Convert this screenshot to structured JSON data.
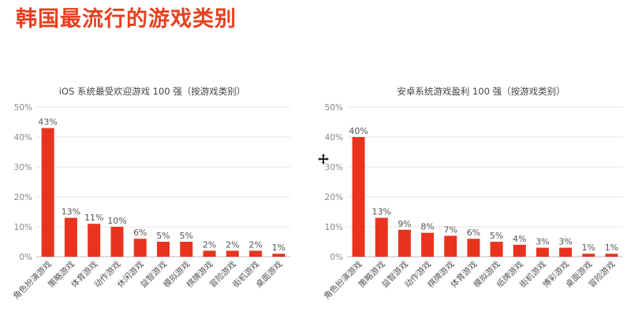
{
  "page": {
    "title": "韩国最流行的游戏类别"
  },
  "colors": {
    "bar": "#e8341f",
    "grid": "#e6e6e6",
    "axis_text": "#888888",
    "label_text": "#555555"
  },
  "cursor": {
    "icon": "move-cursor-icon"
  },
  "chart_data": [
    {
      "type": "bar",
      "title": "iOS 系统最受欢迎游戏 100 强（按游戏类别）",
      "xlabel": "",
      "ylabel": "",
      "ylim": [
        0,
        50
      ],
      "yticks": [
        "0%",
        "10%",
        "20%",
        "30%",
        "40%",
        "50%"
      ],
      "categories": [
        "角色扮演游戏",
        "策略游戏",
        "体育游戏",
        "动作游戏",
        "休闲游戏",
        "益智游戏",
        "模拟游戏",
        "棋牌游戏",
        "冒险游戏",
        "街机游戏",
        "桌面游戏"
      ],
      "values": [
        43,
        13,
        11,
        10,
        6,
        5,
        5,
        2,
        2,
        2,
        1
      ],
      "value_labels": [
        "43%",
        "13%",
        "11%",
        "10%",
        "6%",
        "5%",
        "5%",
        "2%",
        "2%",
        "2%",
        "1%"
      ],
      "grid": true,
      "legend": "none"
    },
    {
      "type": "bar",
      "title": "安卓系统游戏盈利 100 强（按游戏类别）",
      "xlabel": "",
      "ylabel": "",
      "ylim": [
        0,
        50
      ],
      "yticks": [
        "0%",
        "10%",
        "20%",
        "30%",
        "40%",
        "50%"
      ],
      "categories": [
        "角色扮演游戏",
        "策略游戏",
        "益智游戏",
        "动作游戏",
        "棋牌游戏",
        "体育游戏",
        "模拟游戏",
        "纸牌游戏",
        "街机游戏",
        "博彩游戏",
        "桌面游戏",
        "冒险游戏"
      ],
      "values": [
        40,
        13,
        9,
        8,
        7,
        6,
        5,
        4,
        3,
        3,
        1,
        1
      ],
      "value_labels": [
        "40%",
        "13%",
        "9%",
        "8%",
        "7%",
        "6%",
        "5%",
        "4%",
        "3%",
        "3%",
        "1%",
        "1%"
      ],
      "grid": true,
      "legend": "none"
    }
  ]
}
